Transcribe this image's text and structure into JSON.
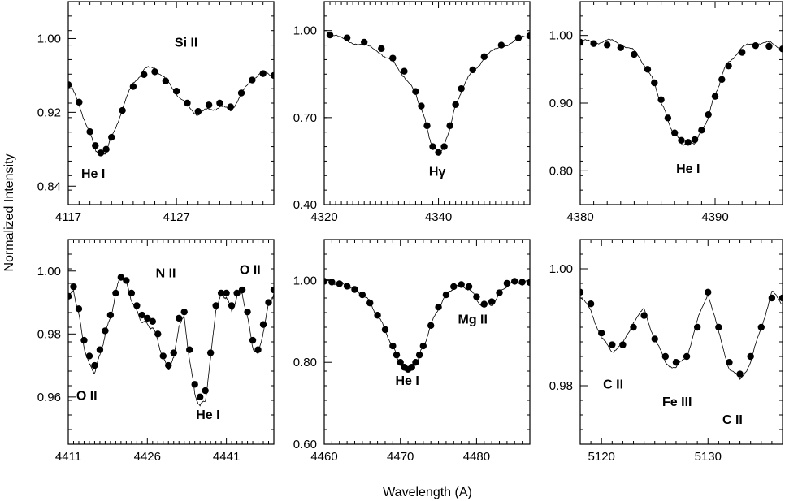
{
  "figure": {
    "ylabel": "Normalized Intensity",
    "xlabel": "Wavelength (A)"
  },
  "chart_data": [
    {
      "type": "line",
      "xlim": [
        4117,
        4136
      ],
      "ylim": [
        0.82,
        1.04
      ],
      "xticks": [
        "4117",
        "4127"
      ],
      "yticks": [
        "1.00",
        "0.92",
        "0.84"
      ],
      "annotations": [
        {
          "text": "He I",
          "x": 4119.3,
          "y": 0.849
        },
        {
          "text": "Si II",
          "x": 4127.9,
          "y": 0.991
        }
      ],
      "series": [
        {
          "style": "dots",
          "x": [
            4117,
            4118,
            4119,
            4119.5,
            4120,
            4120.5,
            4121,
            4122,
            4123,
            4124,
            4125,
            4126,
            4127,
            4128,
            4129,
            4130,
            4131,
            4132,
            4133,
            4134,
            4135,
            4136
          ],
          "y": [
            0.95,
            0.931,
            0.899,
            0.884,
            0.876,
            0.88,
            0.893,
            0.922,
            0.948,
            0.961,
            0.964,
            0.954,
            0.943,
            0.93,
            0.921,
            0.928,
            0.93,
            0.926,
            0.941,
            0.955,
            0.962,
            0.96
          ]
        },
        {
          "style": "noisy-line",
          "x": [
            4117,
            4118,
            4119,
            4119.5,
            4120,
            4120.5,
            4121,
            4122,
            4123,
            4124,
            4125,
            4126,
            4127,
            4128,
            4129,
            4130,
            4131,
            4132,
            4133,
            4134,
            4135,
            4136
          ],
          "y": [
            0.953,
            0.929,
            0.896,
            0.881,
            0.873,
            0.878,
            0.892,
            0.924,
            0.952,
            0.966,
            0.969,
            0.955,
            0.941,
            0.926,
            0.918,
            0.923,
            0.926,
            0.922,
            0.939,
            0.957,
            0.963,
            0.961
          ]
        }
      ]
    },
    {
      "type": "line",
      "xlim": [
        4320,
        4356
      ],
      "ylim": [
        0.4,
        1.1
      ],
      "xticks": [
        "4320",
        "4340"
      ],
      "yticks": [
        "1.00",
        "0.70",
        "0.40"
      ],
      "annotations": [
        {
          "text": "Hγ",
          "x": 4339.8,
          "y": 0.5
        }
      ],
      "series": [
        {
          "style": "dots",
          "x": [
            4321,
            4324,
            4327,
            4330,
            4332,
            4334,
            4336,
            4337,
            4338,
            4339,
            4340,
            4341,
            4342,
            4343,
            4344,
            4346,
            4348,
            4351,
            4354,
            4356
          ],
          "y": [
            0.985,
            0.975,
            0.96,
            0.938,
            0.905,
            0.86,
            0.79,
            0.74,
            0.672,
            0.6,
            0.58,
            0.6,
            0.672,
            0.745,
            0.8,
            0.865,
            0.91,
            0.95,
            0.975,
            0.982
          ]
        },
        {
          "style": "noisy-line",
          "x": [
            4321,
            4324,
            4327,
            4330,
            4332,
            4334,
            4336,
            4337,
            4338,
            4339,
            4340,
            4341,
            4342,
            4343,
            4344,
            4346,
            4348,
            4351,
            4354,
            4356
          ],
          "y": [
            0.982,
            0.968,
            0.948,
            0.924,
            0.89,
            0.845,
            0.78,
            0.73,
            0.665,
            0.595,
            0.578,
            0.596,
            0.668,
            0.74,
            0.795,
            0.86,
            0.906,
            0.946,
            0.972,
            0.98
          ]
        }
      ]
    },
    {
      "type": "line",
      "xlim": [
        4380,
        4395
      ],
      "ylim": [
        0.75,
        1.05
      ],
      "xticks": [
        "4380",
        "4390"
      ],
      "yticks": [
        "1.00",
        "0.90",
        "0.80"
      ],
      "annotations": [
        {
          "text": "He I",
          "x": 4388.0,
          "y": 0.797
        }
      ],
      "series": [
        {
          "style": "dots",
          "x": [
            4380,
            4381,
            4382,
            4383,
            4384,
            4385,
            4385.5,
            4386,
            4386.5,
            4387,
            4387.5,
            4388,
            4388.5,
            4389,
            4389.5,
            4390,
            4390.5,
            4391,
            4392,
            4393,
            4394,
            4395
          ],
          "y": [
            0.99,
            0.988,
            0.986,
            0.982,
            0.972,
            0.95,
            0.93,
            0.905,
            0.878,
            0.856,
            0.845,
            0.842,
            0.846,
            0.86,
            0.883,
            0.91,
            0.935,
            0.955,
            0.975,
            0.985,
            0.984,
            0.98
          ]
        },
        {
          "style": "noisy-line",
          "x": [
            4380,
            4381,
            4382,
            4383,
            4384,
            4385,
            4385.5,
            4386,
            4386.5,
            4387,
            4387.5,
            4388,
            4388.5,
            4389,
            4389.5,
            4390,
            4390.5,
            4391,
            4392,
            4393,
            4394,
            4395
          ],
          "y": [
            0.991,
            0.99,
            0.992,
            0.989,
            0.976,
            0.951,
            0.928,
            0.901,
            0.875,
            0.853,
            0.842,
            0.839,
            0.843,
            0.857,
            0.881,
            0.912,
            0.94,
            0.962,
            0.981,
            0.99,
            0.988,
            0.982
          ]
        }
      ]
    },
    {
      "type": "line",
      "xlim": [
        4411,
        4450
      ],
      "ylim": [
        0.945,
        1.01
      ],
      "xticks": [
        "4411",
        "4426",
        "4441"
      ],
      "yticks": [
        "1.00",
        "0.98",
        "0.96"
      ],
      "annotations": [
        {
          "text": "O II",
          "x": 4414.5,
          "y": 0.959
        },
        {
          "text": "N II",
          "x": 4429.5,
          "y": 0.998
        },
        {
          "text": "O II",
          "x": 4445.5,
          "y": 0.999
        },
        {
          "text": "He I",
          "x": 4437.5,
          "y": 0.953
        }
      ],
      "series": [
        {
          "style": "dots",
          "x": [
            4411,
            4412,
            4413,
            4414,
            4415,
            4416,
            4417,
            4418,
            4419,
            4420,
            4421,
            4422,
            4423,
            4424,
            4425,
            4426,
            4427,
            4428,
            4429,
            4430,
            4431,
            4432,
            4433,
            4434,
            4435,
            4436,
            4437,
            4438,
            4439,
            4440,
            4441,
            4442,
            4443,
            4444,
            4445,
            4446,
            4447,
            4448,
            4449,
            4450
          ],
          "y": [
            0.992,
            0.995,
            0.988,
            0.978,
            0.973,
            0.97,
            0.975,
            0.981,
            0.986,
            0.993,
            0.998,
            0.997,
            0.993,
            0.989,
            0.986,
            0.985,
            0.984,
            0.98,
            0.973,
            0.97,
            0.974,
            0.985,
            0.987,
            0.975,
            0.964,
            0.96,
            0.962,
            0.974,
            0.989,
            0.993,
            0.993,
            0.989,
            0.993,
            0.994,
            0.987,
            0.978,
            0.975,
            0.983,
            0.99,
            0.994
          ]
        },
        {
          "style": "noisy-line",
          "x": [
            4411,
            4412,
            4413,
            4414,
            4415,
            4416,
            4417,
            4418,
            4419,
            4420,
            4421,
            4422,
            4423,
            4424,
            4425,
            4426,
            4427,
            4428,
            4429,
            4430,
            4431,
            4432,
            4433,
            4434,
            4435,
            4436,
            4437,
            4438,
            4439,
            4440,
            4441,
            4442,
            4443,
            4444,
            4445,
            4446,
            4447,
            4448,
            4449,
            4450
          ],
          "y": [
            0.991,
            0.994,
            0.986,
            0.976,
            0.97,
            0.968,
            0.973,
            0.98,
            0.985,
            0.993,
            0.999,
            0.996,
            0.991,
            0.987,
            0.984,
            0.983,
            0.982,
            0.978,
            0.972,
            0.969,
            0.972,
            0.983,
            0.985,
            0.972,
            0.961,
            0.957,
            0.959,
            0.972,
            0.988,
            0.992,
            0.992,
            0.987,
            0.992,
            0.993,
            0.985,
            0.976,
            0.973,
            0.981,
            0.989,
            0.993
          ]
        }
      ]
    },
    {
      "type": "line",
      "xlim": [
        4460,
        4487
      ],
      "ylim": [
        0.6,
        1.1
      ],
      "xticks": [
        "4460",
        "4470",
        "4480"
      ],
      "yticks": [
        "1.00",
        "0.80",
        "0.60"
      ],
      "annotations": [
        {
          "text": "He I",
          "x": 4470.9,
          "y": 0.745
        },
        {
          "text": "Mg II",
          "x": 4479.5,
          "y": 0.895
        }
      ],
      "series": [
        {
          "style": "dots",
          "x": [
            4460,
            4461,
            4462,
            4463,
            4464,
            4465,
            4466,
            4467,
            4468,
            4469,
            4469.5,
            4470,
            4470.5,
            4471,
            4471.5,
            4472,
            4472.5,
            4473,
            4474,
            4475,
            4476,
            4477,
            4478,
            4479,
            4480,
            4481,
            4482,
            4483,
            4484,
            4485,
            4486,
            4487
          ],
          "y": [
            0.998,
            0.996,
            0.992,
            0.986,
            0.978,
            0.965,
            0.945,
            0.915,
            0.88,
            0.84,
            0.818,
            0.8,
            0.788,
            0.783,
            0.788,
            0.8,
            0.818,
            0.84,
            0.89,
            0.935,
            0.965,
            0.985,
            0.99,
            0.985,
            0.96,
            0.942,
            0.948,
            0.97,
            0.993,
            0.998,
            0.996,
            0.995
          ]
        },
        {
          "style": "noisy-line",
          "x": [
            4460,
            4461,
            4462,
            4463,
            4464,
            4465,
            4466,
            4467,
            4468,
            4469,
            4469.5,
            4470,
            4470.5,
            4471,
            4471.5,
            4472,
            4472.5,
            4473,
            4474,
            4475,
            4476,
            4477,
            4478,
            4479,
            4480,
            4481,
            4482,
            4483,
            4484,
            4485,
            4486,
            4487
          ],
          "y": [
            0.999,
            0.997,
            0.993,
            0.987,
            0.979,
            0.966,
            0.946,
            0.914,
            0.879,
            0.839,
            0.817,
            0.799,
            0.787,
            0.782,
            0.787,
            0.799,
            0.817,
            0.839,
            0.889,
            0.934,
            0.964,
            0.985,
            0.988,
            0.98,
            0.953,
            0.936,
            0.941,
            0.965,
            0.99,
            0.997,
            0.996,
            0.995
          ]
        }
      ]
    },
    {
      "type": "line",
      "xlim": [
        5118,
        5137
      ],
      "ylim": [
        0.97,
        1.005
      ],
      "xticks": [
        "5120",
        "5130"
      ],
      "yticks": [
        "1.00",
        "0.98"
      ],
      "annotations": [
        {
          "text": "C II",
          "x": 5121.1,
          "y": 0.9795
        },
        {
          "text": "Fe III",
          "x": 5127.1,
          "y": 0.9765
        },
        {
          "text": "C II",
          "x": 5132.3,
          "y": 0.9735
        }
      ],
      "series": [
        {
          "style": "dots",
          "x": [
            5118,
            5119,
            5120,
            5121,
            5122,
            5123,
            5124,
            5125,
            5126,
            5127,
            5128,
            5129,
            5130,
            5131,
            5132,
            5133,
            5134,
            5135,
            5136,
            5137
          ],
          "y": [
            0.996,
            0.994,
            0.989,
            0.987,
            0.987,
            0.99,
            0.992,
            0.988,
            0.985,
            0.984,
            0.985,
            0.99,
            0.996,
            0.99,
            0.984,
            0.982,
            0.985,
            0.99,
            0.995,
            0.995
          ]
        },
        {
          "style": "noisy-line",
          "x": [
            5118,
            5119,
            5120,
            5121,
            5122,
            5123,
            5124,
            5125,
            5126,
            5127,
            5128,
            5129,
            5130,
            5131,
            5132,
            5133,
            5134,
            5135,
            5136,
            5137
          ],
          "y": [
            0.995,
            0.993,
            0.988,
            0.986,
            0.987,
            0.991,
            0.993,
            0.988,
            0.984,
            0.983,
            0.985,
            0.991,
            0.996,
            0.989,
            0.983,
            0.981,
            0.984,
            0.99,
            0.996,
            0.994
          ]
        }
      ]
    }
  ]
}
